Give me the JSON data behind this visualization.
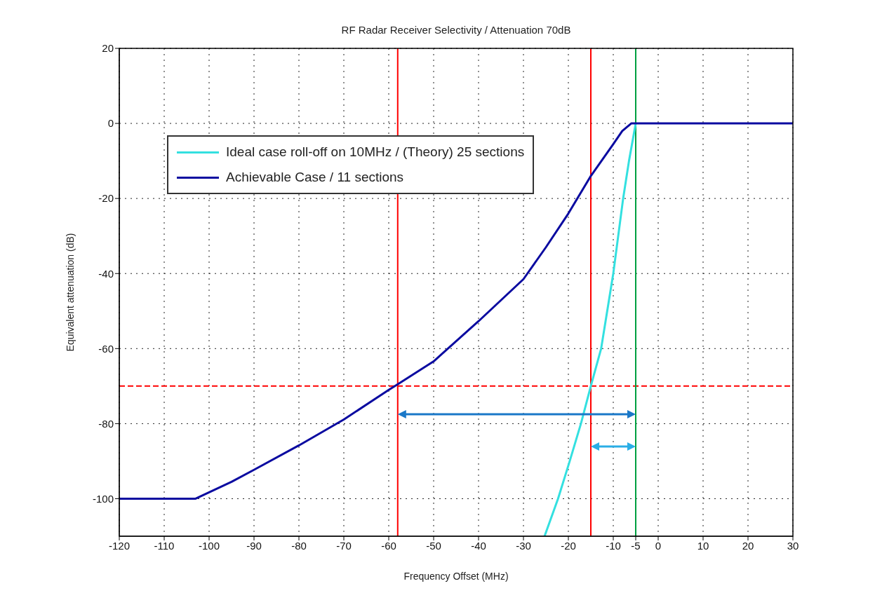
{
  "chart_data": {
    "type": "line",
    "title": "RF Radar Receiver Selectivity / Attenuation 70dB",
    "xlabel": "Frequency Offset (MHz)",
    "ylabel": "Equivalent attenuation (dB)",
    "xlim": [
      -120,
      30
    ],
    "xticks": [
      -120,
      -110,
      -100,
      -90,
      -80,
      -70,
      -60,
      -50,
      -40,
      -30,
      -20,
      -10,
      -5,
      0,
      10,
      20,
      30
    ],
    "ylim": [
      -110,
      20
    ],
    "yticks": [
      -100,
      -80,
      -60,
      -40,
      -20,
      0,
      20
    ],
    "grid": true,
    "legend": "top left",
    "line_style": "solid",
    "marker": "none",
    "series": [
      {
        "name": "Ideal case roll-off on 10MHz / (Theory) 25 sections",
        "color": "#33e0e0",
        "x": [
          -25.3,
          -22.3,
          -19.7,
          -17.2,
          -15,
          -12.7,
          -10,
          -7.8,
          -6.5,
          -5
        ],
        "values": [
          -110,
          -100,
          -90,
          -80,
          -70,
          -60,
          -40,
          -20,
          -10,
          0
        ]
      },
      {
        "name": "Achievable Case / 11 sections",
        "color": "#0a0aa0",
        "x": [
          -120,
          -103,
          -95,
          -90,
          -80,
          -70,
          -60,
          -58,
          -50,
          -40,
          -30,
          -25,
          -20,
          -15,
          -10,
          -8,
          -6,
          0,
          10,
          20,
          30
        ],
        "values": [
          -100,
          -100,
          -95.5,
          -92.3,
          -85.8,
          -78.9,
          -71,
          -69.5,
          -63.4,
          -52.7,
          -41.5,
          -33,
          -24,
          -14,
          -5.5,
          -2,
          0,
          0,
          0,
          0,
          0
        ]
      }
    ],
    "ref_lines": [
      {
        "axis": "y",
        "value": -70,
        "color": "#ff0000",
        "line_style": "dashed"
      },
      {
        "axis": "x",
        "value": -58,
        "color": "#ff0000",
        "line_style": "solid"
      },
      {
        "axis": "x",
        "value": -15,
        "color": "#ff0000",
        "line_style": "solid"
      },
      {
        "axis": "x",
        "value": -5,
        "color": "#00a040",
        "line_style": "solid"
      }
    ]
  }
}
